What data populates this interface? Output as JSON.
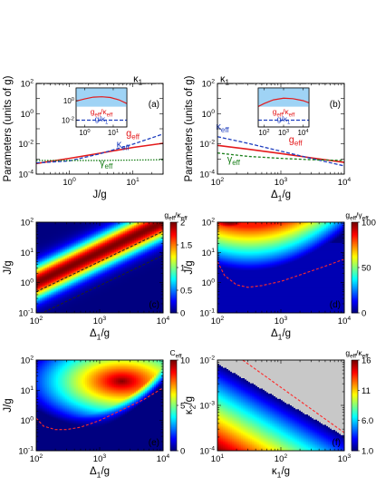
{
  "figure": {
    "panel_labels": [
      "(a)",
      "(b)",
      "(c)",
      "(d)",
      "(e)",
      "(f)"
    ]
  },
  "chart_data": [
    {
      "id": "a",
      "type": "line",
      "log_x": true,
      "log_y": true,
      "xlim": [
        0.3,
        30
      ],
      "ylim": [
        0.0001,
        100
      ],
      "xlabel": "J/g",
      "ylabel": "Parameters (units of g)",
      "xticks": [
        {
          "v": 1,
          "t": "10^0"
        },
        {
          "v": 10,
          "t": "10^1"
        }
      ],
      "yticks": [
        {
          "v": 0.0001,
          "t": "10^-4"
        },
        {
          "v": 0.01,
          "t": "10^-2"
        },
        {
          "v": 1,
          "t": "10^0"
        },
        {
          "v": 100,
          "t": "10^2"
        }
      ],
      "series": [
        {
          "name": "κ1",
          "color": "#000000",
          "dash": "6,2,1.5,2",
          "x": [
            0.3,
            30
          ],
          "y": [
            100,
            100
          ]
        },
        {
          "name": "g_eff",
          "color": "#e41a1c",
          "dash": "",
          "x": [
            0.3,
            1,
            3,
            10,
            30
          ],
          "y": [
            0.0005,
            0.0011,
            0.0024,
            0.0058,
            0.011
          ]
        },
        {
          "name": "κ_eff",
          "color": "#1f3fbf",
          "dash": "4,2",
          "x": [
            0.3,
            1,
            3,
            10,
            30
          ],
          "y": [
            0.00055,
            0.00075,
            0.0022,
            0.0095,
            0.045
          ]
        },
        {
          "name": "γ_eff",
          "color": "#1a7f1a",
          "dash": "1.5,1.5",
          "x": [
            0.3,
            1,
            3,
            10,
            30
          ],
          "y": [
            0.0008,
            0.0008,
            0.0008,
            0.00085,
            0.0009
          ]
        }
      ],
      "series_labels": [
        {
          "text": "κ",
          "sub": "1",
          "x": 12,
          "y": 120,
          "color": "#000000"
        },
        {
          "text": "g",
          "sub": "eff",
          "x": 10,
          "y": 0.03,
          "color": "#e41a1c"
        },
        {
          "text": "κ",
          "sub": "eff",
          "x": 7,
          "y": 0.006,
          "color": "#1f3fbf"
        },
        {
          "text": "γ",
          "sub": "eff",
          "x": 3.8,
          "y": 0.00035,
          "color": "#1a7f1a"
        }
      ],
      "inset": {
        "log_x": true,
        "log_y": true,
        "xlim": [
          0.5,
          30
        ],
        "ylim": [
          0.002,
          20
        ],
        "xticks": [
          {
            "v": 1,
            "t": "10^0"
          },
          {
            "v": 10,
            "t": "10^1"
          }
        ],
        "yticks": [
          {
            "v": 0.01,
            "t": "10^-2"
          },
          {
            "v": 1,
            "t": "10^0"
          }
        ],
        "series": [
          {
            "name": "g_eff/κ_eff",
            "color": "#e41a1c",
            "dash": "",
            "x": [
              0.5,
              1,
              2,
              4,
              8,
              16,
              30
            ],
            "y": [
              0.9,
              1.5,
              2.3,
              2.5,
              2.1,
              1.2,
              0.5
            ]
          },
          {
            "name": "g/κ1",
            "color": "#1f3fbf",
            "dash": "4,2",
            "x": [
              0.5,
              30
            ],
            "y": [
              0.01,
              0.01
            ]
          }
        ],
        "labels": [
          {
            "text": "g",
            "sub": "eff",
            "mid": "/κ",
            "sub2": "eff",
            "color": "#e41a1c"
          },
          {
            "text": "g/κ",
            "sub": "1",
            "color": "#1f3fbf"
          }
        ]
      }
    },
    {
      "id": "b",
      "type": "line",
      "log_x": true,
      "log_y": true,
      "xlim": [
        100,
        10000
      ],
      "ylim": [
        0.0001,
        100
      ],
      "xlabel": "Δ1/g",
      "ylabel": "Parameters (units of g)",
      "xticks": [
        {
          "v": 100,
          "t": "10^2"
        },
        {
          "v": 1000,
          "t": "10^3"
        },
        {
          "v": 10000,
          "t": "10^4"
        }
      ],
      "yticks": [
        {
          "v": 0.0001,
          "t": "10^-4"
        },
        {
          "v": 0.01,
          "t": "10^-2"
        },
        {
          "v": 1,
          "t": "10^0"
        },
        {
          "v": 100,
          "t": "10^2"
        }
      ],
      "series": [
        {
          "name": "κ1",
          "color": "#000000",
          "dash": "6,2,1.5,2",
          "x": [
            100,
            10000
          ],
          "y": [
            100,
            100
          ]
        },
        {
          "name": "g_eff",
          "color": "#e41a1c",
          "dash": "",
          "x": [
            100,
            300,
            1000,
            3000,
            10000
          ],
          "y": [
            0.008,
            0.0045,
            0.0023,
            0.0012,
            0.0006
          ]
        },
        {
          "name": "κ_eff",
          "color": "#1f3fbf",
          "dash": "4,2",
          "x": [
            100,
            300,
            1000,
            3000,
            10000
          ],
          "y": [
            0.03,
            0.011,
            0.0033,
            0.0011,
            0.00035
          ]
        },
        {
          "name": "γ_eff",
          "color": "#1a7f1a",
          "dash": "3,2",
          "x": [
            100,
            300,
            1000,
            3000,
            10000
          ],
          "y": [
            0.0025,
            0.0015,
            0.0011,
            0.0009,
            0.0008
          ]
        }
      ],
      "series_labels": [
        {
          "text": "κ",
          "sub": "1",
          "x": 130,
          "y": 120,
          "color": "#000000"
        },
        {
          "text": "κ",
          "sub": "eff",
          "x": 120,
          "y": 0.09,
          "color": "#1f3fbf"
        },
        {
          "text": "g",
          "sub": "eff",
          "x": 1700,
          "y": 0.012,
          "color": "#e41a1c"
        },
        {
          "text": "γ",
          "sub": "eff",
          "x": 180,
          "y": 0.0006,
          "color": "#1a7f1a"
        }
      ],
      "inset": {
        "log_x": true,
        "log_y": true,
        "xlim": [
          50,
          20000
        ],
        "ylim": [
          0.002,
          20
        ],
        "xticks": [
          {
            "v": 100,
            "t": "10^2"
          },
          {
            "v": 1000,
            "t": "10^3"
          },
          {
            "v": 10000,
            "t": "10^4"
          }
        ],
        "yticks": [],
        "series": [
          {
            "name": "g_eff/κ_eff",
            "color": "#e41a1c",
            "dash": "",
            "x": [
              50,
              100,
              300,
              1000,
              3000,
              10000,
              20000
            ],
            "y": [
              0.25,
              0.5,
              1.2,
              1.8,
              1.6,
              1.0,
              0.6
            ]
          },
          {
            "name": "g/κ1",
            "color": "#1f3fbf",
            "dash": "4,2",
            "x": [
              50,
              20000
            ],
            "y": [
              0.01,
              0.01
            ]
          }
        ],
        "labels": [
          {
            "text": "g",
            "sub": "eff",
            "mid": "/κ",
            "sub2": "eff",
            "color": "#e41a1c"
          },
          {
            "text": "g/κ",
            "sub": "1",
            "color": "#1f3fbf"
          }
        ]
      }
    },
    {
      "id": "c",
      "type": "heatmap",
      "log_x": true,
      "log_y": true,
      "xlim": [
        100,
        10000
      ],
      "ylim": [
        0.1,
        100
      ],
      "xlabel": "Δ1/g",
      "ylabel": "J/g",
      "xticks": [
        {
          "v": 100,
          "t": "10^2"
        },
        {
          "v": 1000,
          "t": "10^3"
        },
        {
          "v": 10000,
          "t": "10^4"
        }
      ],
      "yticks": [
        {
          "v": 0.1,
          "t": "10^-1"
        },
        {
          "v": 1,
          "t": "10^0"
        },
        {
          "v": 10,
          "t": "10^1"
        },
        {
          "v": 100,
          "t": "10^2"
        }
      ],
      "colorbar": {
        "title": "g_eff/κ_eff",
        "min": 0,
        "max": 2,
        "ticks": [
          0,
          0.5,
          1,
          1.5,
          2
        ],
        "tick_labels": [
          "0",
          "0.5",
          "1",
          "1.5",
          "2"
        ]
      },
      "contours": [
        {
          "x": [
            100,
            10000
          ],
          "y": [
            0.5,
            50
          ],
          "color": "#222222"
        },
        {
          "x": [
            100,
            10000
          ],
          "y": [
            0.08,
            8
          ],
          "color": "#222222"
        }
      ]
    },
    {
      "id": "d",
      "type": "heatmap",
      "log_x": true,
      "log_y": true,
      "xlim": [
        100,
        10000
      ],
      "ylim": [
        0.1,
        100
      ],
      "xlabel": "Δ1/g",
      "ylabel": "J/g",
      "xticks": [
        {
          "v": 100,
          "t": "10^2"
        },
        {
          "v": 1000,
          "t": "10^3"
        },
        {
          "v": 10000,
          "t": "10^4"
        }
      ],
      "yticks": [
        {
          "v": 0.1,
          "t": "10^-1"
        },
        {
          "v": 1,
          "t": "10^0"
        },
        {
          "v": 10,
          "t": "10^1"
        },
        {
          "v": 100,
          "t": "10^2"
        }
      ],
      "colorbar": {
        "title": "g_eff/γ_eff",
        "min": 0,
        "max": 100,
        "ticks": [
          0,
          50,
          100
        ],
        "tick_labels": [
          "0",
          "50",
          "100"
        ]
      },
      "contours": [
        {
          "x": [
            100,
            130,
            200,
            300,
            500,
            1000,
            2000,
            5000,
            10000
          ],
          "y": [
            5,
            1.7,
            0.85,
            0.7,
            0.8,
            1.1,
            1.8,
            3.5,
            6
          ],
          "color": "#ff2a2a"
        }
      ]
    },
    {
      "id": "e",
      "type": "heatmap",
      "log_x": true,
      "log_y": true,
      "xlim": [
        100,
        10000
      ],
      "ylim": [
        0.1,
        100
      ],
      "xlabel": "Δ1/g",
      "ylabel": "J/g",
      "xticks": [
        {
          "v": 100,
          "t": "10^2"
        },
        {
          "v": 1000,
          "t": "10^3"
        },
        {
          "v": 10000,
          "t": "10^4"
        }
      ],
      "yticks": [
        {
          "v": 0.1,
          "t": "10^-1"
        },
        {
          "v": 1,
          "t": "10^0"
        },
        {
          "v": 10,
          "t": "10^1"
        },
        {
          "v": 100,
          "t": "10^2"
        }
      ],
      "colorbar": {
        "title": "C_eff",
        "min": 0,
        "max": 10,
        "ticks": [
          0,
          5,
          10
        ],
        "tick_labels": [
          "0",
          "5",
          "10"
        ]
      },
      "contours": [
        {
          "x": [
            100,
            130,
            200,
            300,
            500,
            1000,
            2000,
            5000,
            10000
          ],
          "y": [
            1.2,
            0.65,
            0.5,
            0.5,
            0.6,
            1.0,
            2.0,
            5,
            12
          ],
          "color": "#ff2a2a"
        }
      ]
    },
    {
      "id": "f",
      "type": "heatmap",
      "log_x": true,
      "log_y": true,
      "xlim": [
        10,
        1000
      ],
      "ylim": [
        0.0001,
        0.01
      ],
      "xlabel": "κ1/g",
      "ylabel": "κ2/g",
      "xticks": [
        {
          "v": 10,
          "t": "10^1"
        },
        {
          "v": 100,
          "t": "10^2"
        },
        {
          "v": 1000,
          "t": "10^3"
        }
      ],
      "yticks": [
        {
          "v": 0.0001,
          "t": "10^-4"
        },
        {
          "v": 0.001,
          "t": "10^-3"
        },
        {
          "v": 0.01,
          "t": "10^-2"
        }
      ],
      "colorbar": {
        "title": "g_eff/κ_eff",
        "min": 1,
        "max": 16,
        "ticks": [
          1,
          6,
          11,
          16
        ],
        "tick_labels": [
          "1.0",
          "6.0",
          "11",
          "16"
        ]
      },
      "contours": [
        {
          "x": [
            25,
            1000
          ],
          "y": [
            0.01,
            0.00025
          ],
          "color": "#ff2a2a"
        }
      ]
    }
  ]
}
